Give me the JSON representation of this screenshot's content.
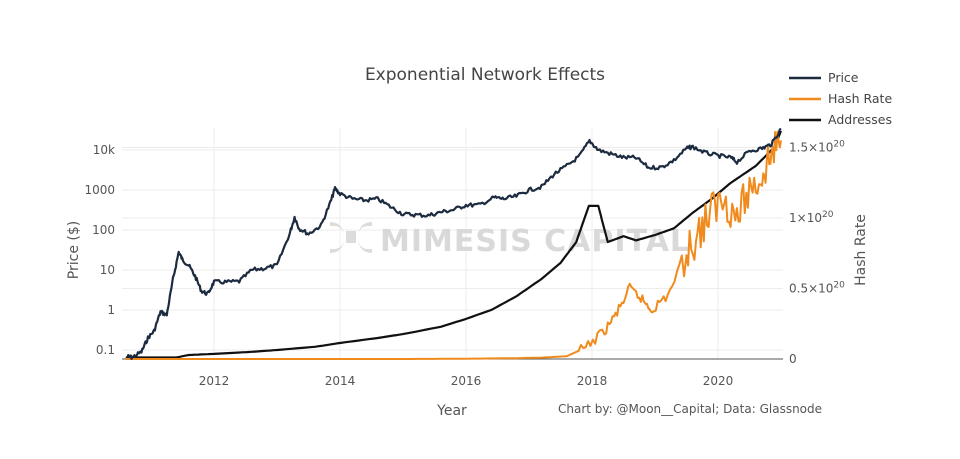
{
  "chart_data": {
    "type": "line",
    "title": "Exponential Network Effects",
    "xlabel": "Year",
    "ylabel_left": "Price ($)",
    "ylabel_right": "Hash Rate",
    "x_ticks": [
      "2012",
      "2014",
      "2016",
      "2018",
      "2020"
    ],
    "x_range": [
      2010.6,
      2021.05
    ],
    "y_left_scale": "log",
    "y_left_ticks": [
      "0.1",
      "1",
      "10",
      "100",
      "1000",
      "10k"
    ],
    "y_left_tick_values": [
      0.1,
      1,
      10,
      100,
      1000,
      10000
    ],
    "y_left_range": [
      0.06,
      35000
    ],
    "y_right_ticks": [
      "0",
      "0.5×10",
      "1×10",
      "1.5×10"
    ],
    "y_right_tick_exponent": "20",
    "y_right_tick_values": [
      0,
      5e+19,
      1e+20,
      1.5e+20
    ],
    "y_right_range": [
      0,
      1.65e+20
    ],
    "grid": true,
    "legend_position": "top-right",
    "credit": "Chart by: @Moon__Capital; Data: Glassnode",
    "watermark": "MIMESIS CAPITAL",
    "series": [
      {
        "name": "Price",
        "color": "#1c2b40",
        "axis": "left",
        "points": [
          [
            2010.62,
            0.07
          ],
          [
            2010.7,
            0.065
          ],
          [
            2010.85,
            0.09
          ],
          [
            2010.95,
            0.2
          ],
          [
            2011.05,
            0.3
          ],
          [
            2011.15,
            0.9
          ],
          [
            2011.25,
            0.75
          ],
          [
            2011.35,
            6
          ],
          [
            2011.44,
            28
          ],
          [
            2011.5,
            18
          ],
          [
            2011.6,
            13
          ],
          [
            2011.7,
            7
          ],
          [
            2011.8,
            3
          ],
          [
            2011.9,
            2.5
          ],
          [
            2012.0,
            5
          ],
          [
            2012.2,
            5
          ],
          [
            2012.4,
            5.2
          ],
          [
            2012.6,
            10
          ],
          [
            2012.8,
            11
          ],
          [
            2013.0,
            13
          ],
          [
            2013.2,
            80
          ],
          [
            2013.28,
            210
          ],
          [
            2013.35,
            110
          ],
          [
            2013.5,
            80
          ],
          [
            2013.7,
            130
          ],
          [
            2013.85,
            500
          ],
          [
            2013.92,
            1100
          ],
          [
            2014.0,
            800
          ],
          [
            2014.2,
            600
          ],
          [
            2014.4,
            550
          ],
          [
            2014.6,
            600
          ],
          [
            2014.8,
            380
          ],
          [
            2015.0,
            250
          ],
          [
            2015.2,
            240
          ],
          [
            2015.4,
            230
          ],
          [
            2015.6,
            280
          ],
          [
            2015.8,
            320
          ],
          [
            2016.0,
            420
          ],
          [
            2016.2,
            420
          ],
          [
            2016.45,
            650
          ],
          [
            2016.6,
            600
          ],
          [
            2016.8,
            700
          ],
          [
            2017.0,
            1000
          ],
          [
            2017.2,
            1200
          ],
          [
            2017.4,
            2500
          ],
          [
            2017.6,
            4000
          ],
          [
            2017.8,
            7000
          ],
          [
            2017.96,
            17000
          ],
          [
            2018.1,
            10000
          ],
          [
            2018.3,
            8000
          ],
          [
            2018.5,
            6500
          ],
          [
            2018.7,
            6400
          ],
          [
            2018.9,
            3600
          ],
          [
            2019.1,
            3700
          ],
          [
            2019.3,
            5500
          ],
          [
            2019.5,
            11000
          ],
          [
            2019.6,
            12000
          ],
          [
            2019.8,
            8500
          ],
          [
            2020.0,
            7200
          ],
          [
            2020.2,
            6500
          ],
          [
            2020.3,
            5000
          ],
          [
            2020.5,
            9500
          ],
          [
            2020.7,
            11000
          ],
          [
            2020.85,
            14000
          ],
          [
            2021.0,
            34000
          ]
        ]
      },
      {
        "name": "Hash Rate",
        "color": "#f08a1c",
        "axis": "right",
        "points": [
          [
            2010.6,
            0
          ],
          [
            2015.0,
            0
          ],
          [
            2016.0,
            2e+17
          ],
          [
            2016.8,
            6e+17
          ],
          [
            2017.2,
            1e+18
          ],
          [
            2017.6,
            2e+18
          ],
          [
            2017.9,
            8e+18
          ],
          [
            2018.2,
            2e+19
          ],
          [
            2018.4,
            3.3e+19
          ],
          [
            2018.6,
            5e+19
          ],
          [
            2018.8,
            4.2e+19
          ],
          [
            2018.95,
            3.5e+19
          ],
          [
            2019.2,
            4.5e+19
          ],
          [
            2019.5,
            7.5e+19
          ],
          [
            2019.7,
            9e+19
          ],
          [
            2019.9,
            1.05e+20
          ],
          [
            2020.1,
            1.15e+20
          ],
          [
            2020.3,
            1e+20
          ],
          [
            2020.5,
            1.2e+20
          ],
          [
            2020.7,
            1.3e+20
          ],
          [
            2020.85,
            1.45e+20
          ],
          [
            2021.0,
            1.55e+20
          ]
        ]
      },
      {
        "name": "Addresses",
        "color": "#111111",
        "axis": "left",
        "points": [
          [
            2010.6,
            0.065
          ],
          [
            2011.4,
            0.065
          ],
          [
            2011.6,
            0.075
          ],
          [
            2012.0,
            0.08
          ],
          [
            2012.6,
            0.09
          ],
          [
            2013.0,
            0.1
          ],
          [
            2013.6,
            0.12
          ],
          [
            2014.0,
            0.15
          ],
          [
            2014.6,
            0.2
          ],
          [
            2015.0,
            0.25
          ],
          [
            2015.6,
            0.38
          ],
          [
            2016.0,
            0.6
          ],
          [
            2016.4,
            1
          ],
          [
            2016.8,
            2.2
          ],
          [
            2017.2,
            6
          ],
          [
            2017.5,
            15
          ],
          [
            2017.75,
            50
          ],
          [
            2017.95,
            400
          ],
          [
            2018.1,
            400
          ],
          [
            2018.25,
            50
          ],
          [
            2018.5,
            70
          ],
          [
            2018.7,
            55
          ],
          [
            2019.0,
            75
          ],
          [
            2019.3,
            110
          ],
          [
            2019.6,
            270
          ],
          [
            2019.9,
            600
          ],
          [
            2020.2,
            1500
          ],
          [
            2020.6,
            4000
          ],
          [
            2020.9,
            12000
          ],
          [
            2021.0,
            30000
          ]
        ]
      }
    ]
  }
}
